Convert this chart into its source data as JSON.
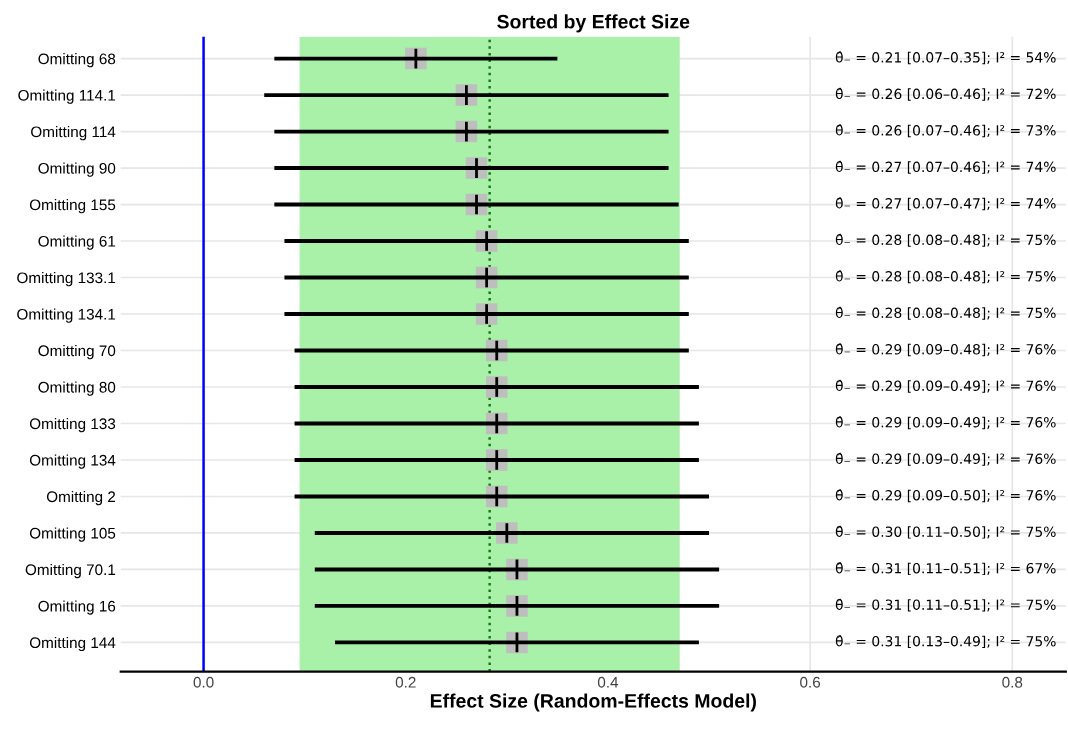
{
  "chart_data": {
    "type": "scatter",
    "orientation": "horizontal",
    "title": "Sorted by Effect Size",
    "xlabel": "Effect Size (Random-Effects Model)",
    "categories": [
      "Omitting 68",
      "Omitting 114.1",
      "Omitting 114",
      "Omitting 90",
      "Omitting 155",
      "Omitting 61",
      "Omitting 133.1",
      "Omitting 134.1",
      "Omitting 70",
      "Omitting 80",
      "Omitting 133",
      "Omitting 134",
      "Omitting 2",
      "Omitting 105",
      "Omitting 70.1",
      "Omitting 16",
      "Omitting 144"
    ],
    "color": "#bebebe",
    "values": [
      0.21,
      0.26,
      0.26,
      0.27,
      0.27,
      0.28,
      0.28,
      0.28,
      0.29,
      0.29,
      0.29,
      0.29,
      0.29,
      0.3,
      0.31,
      0.31,
      0.31
    ],
    "errors": [
      [
        0.07,
        0.35
      ],
      [
        0.06,
        0.46
      ],
      [
        0.07,
        0.46
      ],
      [
        0.07,
        0.46
      ],
      [
        0.07,
        0.47
      ],
      [
        0.08,
        0.48
      ],
      [
        0.08,
        0.48
      ],
      [
        0.08,
        0.48
      ],
      [
        0.09,
        0.48
      ],
      [
        0.09,
        0.49
      ],
      [
        0.09,
        0.49
      ],
      [
        0.09,
        0.49
      ],
      [
        0.09,
        0.5
      ],
      [
        0.11,
        0.5
      ],
      [
        0.11,
        0.51
      ],
      [
        0.11,
        0.51
      ],
      [
        0.13,
        0.49
      ]
    ],
    "marker": "square",
    "xlim": [
      -0.082,
      0.853
    ],
    "xticks": [
      {
        "value": 0,
        "label": "0.0"
      },
      0.2,
      0.4,
      0.6,
      0.8
    ],
    "grid": true,
    "ref_lines": [
      {
        "axis": "x",
        "value": 0,
        "color": "#0000ff",
        "line_style": "solid"
      },
      {
        "axis": "x",
        "value": 0.283,
        "color": "#1a7a1a",
        "line_style": "dotted"
      }
    ],
    "bands": [
      {
        "axis": "x",
        "from": 0.095,
        "to": 0.471,
        "color": "#a9f0a9"
      }
    ],
    "annotations": [
      "θ̂₋ = 0.21 [0.07–0.35]; I² = 54%",
      "θ̂₋ = 0.26 [0.06–0.46]; I² = 72%",
      "θ̂₋ = 0.26 [0.07–0.46]; I² = 73%",
      "θ̂₋ = 0.27 [0.07–0.46]; I² = 74%",
      "θ̂₋ = 0.27 [0.07–0.47]; I² = 74%",
      "θ̂₋ = 0.28 [0.08–0.48]; I² = 75%",
      "θ̂₋ = 0.28 [0.08–0.48]; I² = 75%",
      "θ̂₋ = 0.28 [0.08–0.48]; I² = 75%",
      "θ̂₋ = 0.29 [0.09–0.48]; I² = 76%",
      "θ̂₋ = 0.29 [0.09–0.49]; I² = 76%",
      "θ̂₋ = 0.29 [0.09–0.49]; I² = 76%",
      "θ̂₋ = 0.29 [0.09–0.49]; I² = 76%",
      "θ̂₋ = 0.29 [0.09–0.50]; I² = 76%",
      "θ̂₋ = 0.30 [0.11–0.50]; I² = 75%",
      "θ̂₋ = 0.31 [0.11–0.51]; I² = 67%",
      "θ̂₋ = 0.31 [0.11–0.51]; I² = 75%",
      "θ̂₋ = 0.31 [0.13–0.49]; I² = 75%"
    ]
  }
}
